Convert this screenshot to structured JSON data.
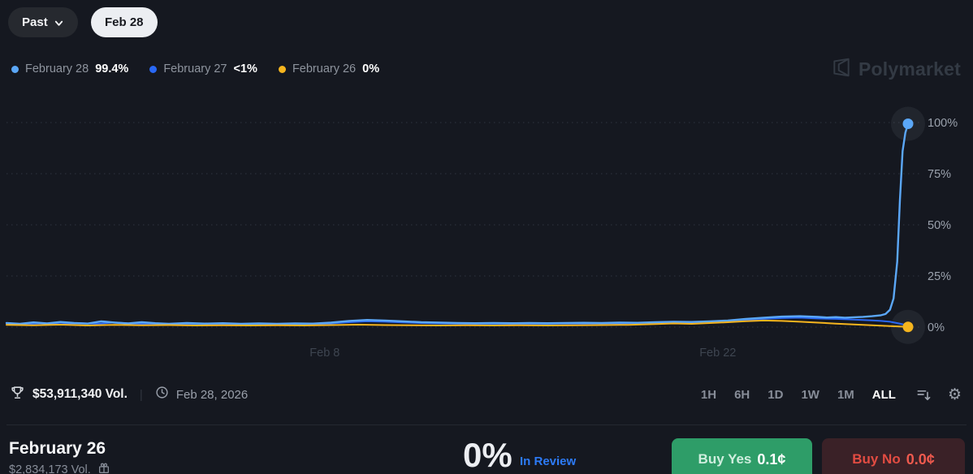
{
  "header": {
    "past_button": "Past",
    "date_chip": "Feb 28"
  },
  "legend": {
    "items": [
      {
        "label": "February 28",
        "value": "99.4%",
        "color": "#5ba7f7"
      },
      {
        "label": "February 27",
        "value": "<1%",
        "color": "#2968f5"
      },
      {
        "label": "February 26",
        "value": "0%",
        "color": "#f6b51e"
      }
    ]
  },
  "watermark": {
    "brand": "Polymarket"
  },
  "chart_data": {
    "type": "line",
    "title": "Outcome probability over time",
    "xlabel": "",
    "ylabel": "",
    "ylim": [
      0,
      100
    ],
    "grid": "dotted-horizontal",
    "legend_position": "top-left",
    "y_ticks": [
      {
        "label": "0%",
        "value": 0
      },
      {
        "label": "25%",
        "value": 25
      },
      {
        "label": "50%",
        "value": 50
      },
      {
        "label": "75%",
        "value": 75
      },
      {
        "label": "100%",
        "value": 100
      }
    ],
    "x_ticks": [
      {
        "label": "Feb 8",
        "fx": 0.353
      },
      {
        "label": "Feb 22",
        "fx": 0.789
      }
    ],
    "series": [
      {
        "name": "February 27",
        "color": "#2968f5",
        "width": 2,
        "final_value": "<1%",
        "points": [
          [
            0,
            1.7
          ],
          [
            0.02,
            1.4
          ],
          [
            0.04,
            1.9
          ],
          [
            0.06,
            1.5
          ],
          [
            0.08,
            2.0
          ],
          [
            0.1,
            1.6
          ],
          [
            0.12,
            2.3
          ],
          [
            0.14,
            1.7
          ],
          [
            0.16,
            1.5
          ],
          [
            0.18,
            1.4
          ],
          [
            0.2,
            1.6
          ],
          [
            0.22,
            1.4
          ],
          [
            0.24,
            1.5
          ],
          [
            0.26,
            1.3
          ],
          [
            0.28,
            1.5
          ],
          [
            0.3,
            1.4
          ],
          [
            0.32,
            1.5
          ],
          [
            0.34,
            1.4
          ],
          [
            0.36,
            1.8
          ],
          [
            0.38,
            2.4
          ],
          [
            0.4,
            2.8
          ],
          [
            0.42,
            2.6
          ],
          [
            0.44,
            2.3
          ],
          [
            0.46,
            2.0
          ],
          [
            0.48,
            1.8
          ],
          [
            0.5,
            1.7
          ],
          [
            0.52,
            1.6
          ],
          [
            0.54,
            1.7
          ],
          [
            0.56,
            1.6
          ],
          [
            0.58,
            1.7
          ],
          [
            0.6,
            1.6
          ],
          [
            0.62,
            1.8
          ],
          [
            0.64,
            1.7
          ],
          [
            0.66,
            1.9
          ],
          [
            0.68,
            1.8
          ],
          [
            0.7,
            2.0
          ],
          [
            0.72,
            2.2
          ],
          [
            0.74,
            2.4
          ],
          [
            0.76,
            2.3
          ],
          [
            0.78,
            2.6
          ],
          [
            0.8,
            2.9
          ],
          [
            0.82,
            3.5
          ],
          [
            0.84,
            4.0
          ],
          [
            0.86,
            4.4
          ],
          [
            0.88,
            4.6
          ],
          [
            0.9,
            4.2
          ],
          [
            0.92,
            4.0
          ],
          [
            0.94,
            3.7
          ],
          [
            0.96,
            3.3
          ],
          [
            0.97,
            3.0
          ],
          [
            0.98,
            2.6
          ],
          [
            0.99,
            1.8
          ],
          [
            1,
            0.8
          ]
        ]
      },
      {
        "name": "February 28",
        "color": "#5ba7f7",
        "width": 2.4,
        "final_value": "99.4%",
        "points": [
          [
            0,
            2.0
          ],
          [
            0.015,
            1.6
          ],
          [
            0.03,
            2.3
          ],
          [
            0.045,
            1.8
          ],
          [
            0.06,
            2.5
          ],
          [
            0.075,
            2.0
          ],
          [
            0.09,
            1.7
          ],
          [
            0.105,
            2.8
          ],
          [
            0.12,
            2.2
          ],
          [
            0.135,
            1.8
          ],
          [
            0.15,
            2.4
          ],
          [
            0.165,
            1.9
          ],
          [
            0.18,
            1.6
          ],
          [
            0.2,
            2.0
          ],
          [
            0.22,
            1.7
          ],
          [
            0.24,
            1.9
          ],
          [
            0.26,
            1.6
          ],
          [
            0.28,
            1.8
          ],
          [
            0.3,
            1.6
          ],
          [
            0.32,
            1.8
          ],
          [
            0.34,
            1.7
          ],
          [
            0.36,
            2.2
          ],
          [
            0.38,
            3.0
          ],
          [
            0.4,
            3.5
          ],
          [
            0.42,
            3.2
          ],
          [
            0.44,
            2.8
          ],
          [
            0.46,
            2.4
          ],
          [
            0.48,
            2.2
          ],
          [
            0.5,
            2.0
          ],
          [
            0.52,
            1.9
          ],
          [
            0.54,
            2.0
          ],
          [
            0.56,
            1.9
          ],
          [
            0.58,
            2.0
          ],
          [
            0.6,
            1.9
          ],
          [
            0.62,
            2.0
          ],
          [
            0.64,
            2.1
          ],
          [
            0.66,
            2.0
          ],
          [
            0.68,
            2.2
          ],
          [
            0.7,
            2.1
          ],
          [
            0.72,
            2.4
          ],
          [
            0.74,
            2.6
          ],
          [
            0.76,
            2.5
          ],
          [
            0.78,
            2.8
          ],
          [
            0.8,
            3.2
          ],
          [
            0.82,
            4.0
          ],
          [
            0.84,
            4.6
          ],
          [
            0.86,
            5.1
          ],
          [
            0.88,
            5.3
          ],
          [
            0.9,
            5.0
          ],
          [
            0.91,
            4.7
          ],
          [
            0.92,
            4.9
          ],
          [
            0.93,
            4.6
          ],
          [
            0.94,
            4.8
          ],
          [
            0.95,
            5.0
          ],
          [
            0.96,
            5.3
          ],
          [
            0.97,
            5.8
          ],
          [
            0.975,
            6.4
          ],
          [
            0.98,
            8.5
          ],
          [
            0.984,
            14
          ],
          [
            0.988,
            32
          ],
          [
            0.991,
            62
          ],
          [
            0.994,
            86
          ],
          [
            0.997,
            95
          ],
          [
            1,
            99.4
          ]
        ]
      },
      {
        "name": "February 26",
        "color": "#f6b51e",
        "width": 2,
        "final_value": "0%",
        "points": [
          [
            0,
            1.1
          ],
          [
            0.03,
            0.9
          ],
          [
            0.06,
            1.2
          ],
          [
            0.09,
            0.8
          ],
          [
            0.12,
            1.1
          ],
          [
            0.15,
            0.9
          ],
          [
            0.18,
            1.0
          ],
          [
            0.21,
            0.8
          ],
          [
            0.24,
            0.9
          ],
          [
            0.27,
            0.8
          ],
          [
            0.3,
            0.9
          ],
          [
            0.33,
            0.8
          ],
          [
            0.36,
            1.0
          ],
          [
            0.39,
            1.2
          ],
          [
            0.42,
            1.0
          ],
          [
            0.45,
            0.9
          ],
          [
            0.48,
            0.8
          ],
          [
            0.51,
            0.9
          ],
          [
            0.54,
            0.8
          ],
          [
            0.57,
            0.9
          ],
          [
            0.6,
            0.8
          ],
          [
            0.63,
            0.9
          ],
          [
            0.66,
            1.0
          ],
          [
            0.69,
            1.1
          ],
          [
            0.72,
            1.5
          ],
          [
            0.74,
            1.8
          ],
          [
            0.76,
            1.6
          ],
          [
            0.78,
            2.0
          ],
          [
            0.8,
            2.4
          ],
          [
            0.82,
            2.9
          ],
          [
            0.84,
            3.2
          ],
          [
            0.86,
            3.0
          ],
          [
            0.88,
            2.6
          ],
          [
            0.9,
            2.2
          ],
          [
            0.92,
            1.7
          ],
          [
            0.94,
            1.3
          ],
          [
            0.96,
            0.9
          ],
          [
            0.98,
            0.5
          ],
          [
            1,
            0.1
          ]
        ]
      }
    ],
    "end_markers": [
      {
        "fx": 1,
        "value": 99.4,
        "color": "#5ba7f7"
      },
      {
        "fx": 1,
        "value": 0.1,
        "color": "#f6b51e"
      }
    ]
  },
  "toolbar": {
    "volume": "$53,911,340 Vol.",
    "separator": "|",
    "end_date": "Feb 28, 2026",
    "timeframes": [
      "1H",
      "6H",
      "1D",
      "1W",
      "1M",
      "ALL"
    ],
    "selected_timeframe": "ALL"
  },
  "outcome": {
    "title": "February 26",
    "volume": "$2,834,173 Vol.",
    "chance": "0%",
    "status": "In Review",
    "buy_yes_label": "Buy Yes",
    "buy_yes_price": "0.1¢",
    "buy_no_label": "Buy No",
    "buy_no_price": "0.0¢"
  },
  "colors": {
    "background": "#151820",
    "accent_blue_light": "#5ba7f7",
    "accent_blue": "#2968f5",
    "accent_yellow": "#f6b51e",
    "buy_yes_green": "#2e9d68",
    "buy_no_red": "#e34c42",
    "status_link_blue": "#2d7bf7"
  }
}
